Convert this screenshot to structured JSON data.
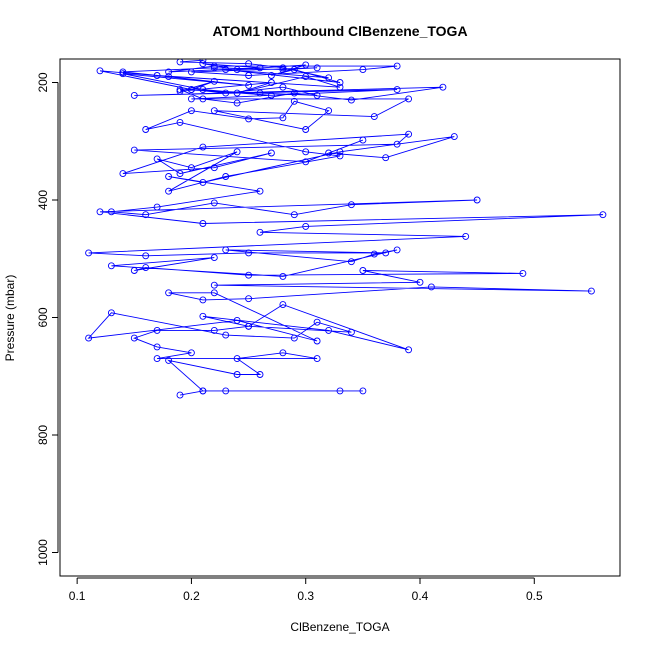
{
  "chart_data": {
    "type": "line",
    "title": "ATOM1 Northbound ClBenzene_TOGA",
    "xlabel": "ClBenzene_TOGA",
    "ylabel": "Pressure (mbar)",
    "xlim": [
      0.085,
      0.575
    ],
    "ylim": [
      1040,
      160
    ],
    "y_reversed": true,
    "grid": false,
    "xticks": [
      0.1,
      0.2,
      0.3,
      0.4,
      0.5
    ],
    "xtick_labels": [
      "0.1",
      "0.2",
      "0.3",
      "0.4",
      "0.5"
    ],
    "yticks": [
      200,
      400,
      600,
      800,
      1000
    ],
    "ytick_labels": [
      "200",
      "400",
      "600",
      "800",
      "1000"
    ],
    "series": [
      {
        "color": "#0000ff",
        "marker": "open-circle",
        "x": [
          0.19,
          0.21,
          0.23,
          0.35,
          0.33,
          0.21,
          0.18,
          0.24,
          0.26,
          0.24,
          0.28,
          0.31,
          0.17,
          0.2,
          0.17,
          0.15,
          0.17,
          0.22,
          0.25,
          0.21,
          0.32,
          0.39,
          0.28,
          0.25,
          0.34,
          0.31,
          0.29,
          0.23,
          0.13,
          0.11,
          0.24,
          0.31,
          0.22,
          0.18,
          0.21,
          0.25,
          0.41,
          0.55,
          0.22,
          0.4,
          0.35,
          0.49,
          0.25,
          0.16,
          0.15,
          0.22,
          0.13,
          0.28,
          0.38,
          0.36,
          0.34,
          0.23,
          0.37,
          0.25,
          0.16,
          0.11,
          0.44,
          0.26,
          0.3,
          0.56,
          0.21,
          0.12,
          0.45,
          0.34,
          0.29,
          0.22,
          0.16,
          0.13,
          0.17,
          0.26,
          0.18,
          0.21,
          0.33,
          0.43,
          0.37,
          0.32,
          0.35,
          0.3,
          0.15,
          0.38,
          0.39,
          0.21,
          0.14,
          0.22,
          0.27,
          0.19,
          0.17,
          0.2,
          0.24,
          0.18,
          0.23,
          0.33,
          0.3,
          0.19,
          0.16,
          0.2,
          0.25,
          0.28,
          0.29,
          0.32,
          0.3,
          0.22,
          0.36,
          0.39,
          0.2,
          0.38,
          0.15,
          0.42,
          0.34,
          0.29,
          0.24,
          0.21,
          0.19,
          0.26,
          0.31,
          0.28,
          0.23,
          0.2,
          0.27,
          0.21,
          0.14,
          0.25,
          0.17,
          0.33,
          0.3,
          0.24,
          0.27,
          0.19,
          0.22,
          0.2,
          0.12,
          0.18,
          0.14,
          0.22,
          0.28,
          0.31,
          0.2,
          0.25,
          0.35,
          0.38,
          0.22,
          0.18,
          0.26,
          0.21,
          0.24,
          0.3,
          0.27,
          0.29,
          0.33,
          0.23,
          0.32,
          0.28,
          0.25,
          0.19,
          0.21
        ],
        "y": [
          732,
          725,
          725,
          725,
          725,
          725,
          673,
          697,
          697,
          670,
          660,
          670,
          670,
          660,
          650,
          635,
          622,
          622,
          615,
          598,
          622,
          655,
          578,
          615,
          625,
          608,
          635,
          630,
          592,
          635,
          605,
          640,
          558,
          558,
          570,
          568,
          548,
          555,
          545,
          540,
          520,
          525,
          528,
          515,
          520,
          498,
          512,
          530,
          485,
          492,
          505,
          485,
          490,
          490,
          495,
          490,
          462,
          455,
          445,
          425,
          440,
          420,
          400,
          408,
          425,
          405,
          425,
          420,
          412,
          385,
          360,
          370,
          318,
          292,
          328,
          320,
          298,
          335,
          315,
          305,
          288,
          310,
          355,
          345,
          320,
          355,
          330,
          345,
          318,
          385,
          360,
          325,
          318,
          268,
          280,
          248,
          262,
          260,
          232,
          248,
          280,
          248,
          258,
          228,
          228,
          212,
          222,
          208,
          230,
          218,
          235,
          228,
          212,
          218,
          222,
          208,
          218,
          212,
          222,
          212,
          185,
          205,
          188,
          208,
          190,
          218,
          200,
          215,
          198,
          212,
          180,
          190,
          182,
          175,
          178,
          175,
          182,
          188,
          178,
          172,
          172,
          182,
          175,
          168,
          178,
          170,
          188,
          178,
          200,
          178,
          192,
          175,
          168,
          165,
          162
        ]
      }
    ]
  }
}
